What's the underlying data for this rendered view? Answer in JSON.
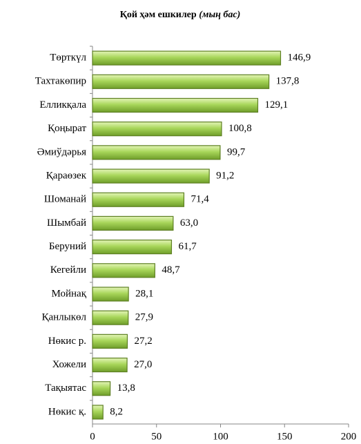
{
  "chart_data": {
    "type": "bar",
    "orientation": "horizontal",
    "title": "Қой ҳәм ешкилер",
    "title_unit": "(мың бас)",
    "categories": [
      "Төрткүл",
      "Тахтакөпир",
      "Елликқала",
      "Қоңырат",
      "Әмиўдәрья",
      "Қараөзек",
      "Шоманай",
      "Шымбай",
      "Беруний",
      "Кегейли",
      "Мойнақ",
      "Қанлыкөл",
      "Нөкис р.",
      "Хожели",
      "Тақыятас",
      "Нөкис қ."
    ],
    "values": [
      146.9,
      137.8,
      129.1,
      100.8,
      99.7,
      91.2,
      71.4,
      63.0,
      61.7,
      48.7,
      28.1,
      27.9,
      27.2,
      27.0,
      13.8,
      8.2
    ],
    "value_labels": [
      "146,9",
      "137,8",
      "129,1",
      "100,8",
      "99,7",
      "91,2",
      "71,4",
      "63,0",
      "61,7",
      "48,7",
      "28,1",
      "27,9",
      "27,2",
      "27,0",
      "13,8",
      "8,2"
    ],
    "color": "#8cc63f",
    "xlim": [
      0,
      200
    ],
    "xticks": [
      0,
      50,
      100,
      150,
      200
    ],
    "grid": false
  }
}
